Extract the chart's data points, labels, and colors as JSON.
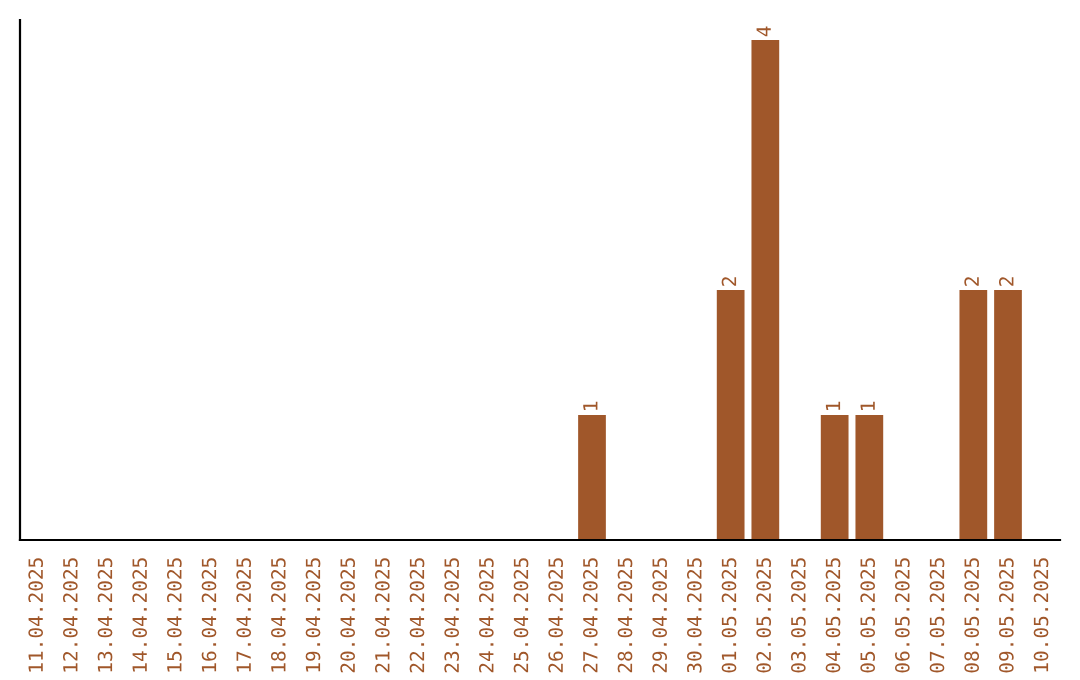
{
  "chart_data": {
    "type": "bar",
    "categories": [
      "11.04.2025",
      "12.04.2025",
      "13.04.2025",
      "14.04.2025",
      "15.04.2025",
      "16.04.2025",
      "17.04.2025",
      "18.04.2025",
      "19.04.2025",
      "20.04.2025",
      "21.04.2025",
      "22.04.2025",
      "23.04.2025",
      "24.04.2025",
      "25.04.2025",
      "26.04.2025",
      "27.04.2025",
      "28.04.2025",
      "29.04.2025",
      "30.04.2025",
      "01.05.2025",
      "02.05.2025",
      "03.05.2025",
      "04.05.2025",
      "05.05.2025",
      "06.05.2025",
      "07.05.2025",
      "08.05.2025",
      "09.05.2025",
      "10.05.2025"
    ],
    "values": [
      null,
      null,
      null,
      null,
      null,
      null,
      null,
      null,
      null,
      null,
      null,
      null,
      null,
      null,
      null,
      null,
      1,
      null,
      null,
      null,
      2,
      4,
      null,
      1,
      1,
      null,
      null,
      2,
      2,
      null
    ],
    "value_labels": [
      null,
      null,
      null,
      null,
      null,
      null,
      null,
      null,
      null,
      null,
      null,
      null,
      null,
      null,
      null,
      null,
      "1",
      null,
      null,
      null,
      "2",
      "4",
      null,
      "1",
      "1",
      null,
      null,
      "2",
      "2",
      null
    ],
    "color": "#a0572a",
    "tick_labels": "x",
    "grid": false,
    "legend": false
  }
}
